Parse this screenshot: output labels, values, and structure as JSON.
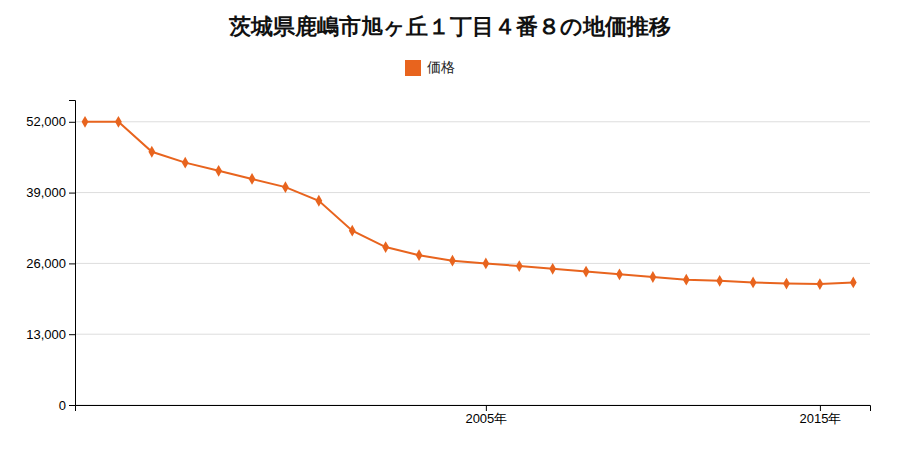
{
  "chart_data": {
    "type": "line",
    "title": "茨城県鹿嶋市旭ヶ丘１丁目４番８の地価推移",
    "x": [
      1993,
      1994,
      1995,
      1996,
      1997,
      1998,
      1999,
      2000,
      2001,
      2002,
      2003,
      2004,
      2005,
      2006,
      2007,
      2008,
      2009,
      2010,
      2011,
      2012,
      2013,
      2014,
      2015,
      2016
    ],
    "series": [
      {
        "name": "価格",
        "color": "#e8641e",
        "marker": "diamond",
        "values": [
          52000,
          52000,
          46500,
          44500,
          43000,
          41500,
          40000,
          37500,
          32000,
          29000,
          27500,
          26500,
          26000,
          25500,
          25000,
          24500,
          24000,
          23500,
          23000,
          22800,
          22500,
          22300,
          22200,
          22500
        ]
      }
    ],
    "xlim": [
      1992.7,
      2016.5
    ],
    "xticks": [
      {
        "value": 2005,
        "label": "2005年"
      },
      {
        "value": 2015,
        "label": "2015年"
      }
    ],
    "ylim": [
      0,
      56000
    ],
    "yticks": [
      0,
      {
        "value": 13000,
        "label": "13,000"
      },
      {
        "value": 26000,
        "label": "26,000"
      },
      {
        "value": 39000,
        "label": "39,000"
      },
      {
        "value": 52000,
        "label": "52,000"
      }
    ],
    "grid": true,
    "legend": "top"
  }
}
